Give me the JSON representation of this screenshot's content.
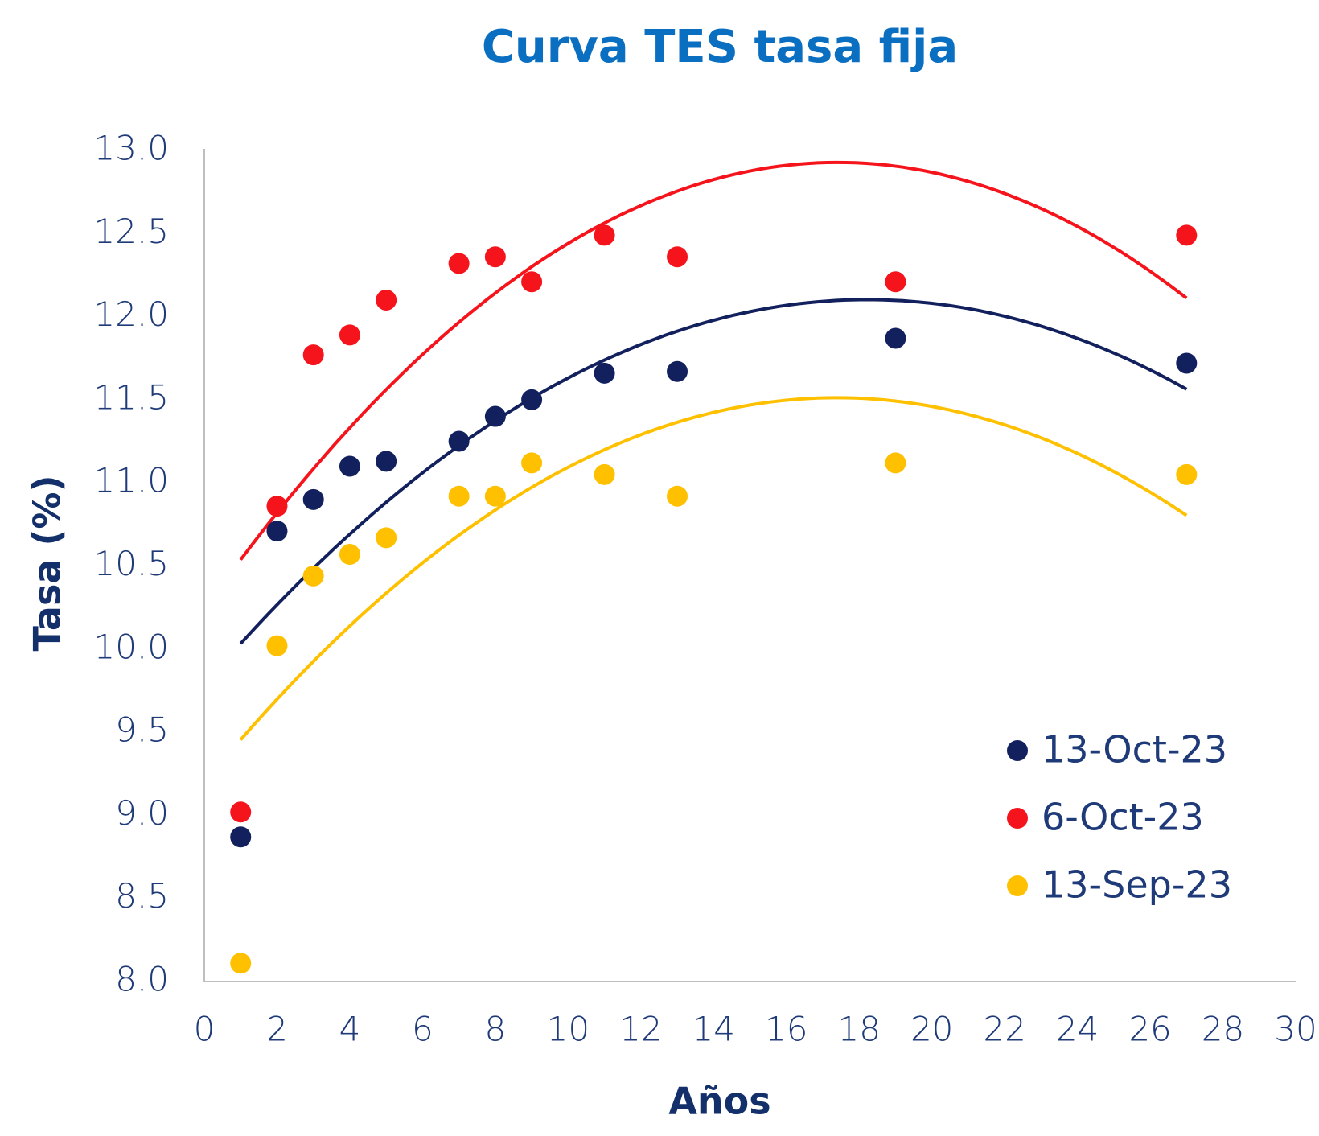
{
  "chart_data": {
    "type": "scatter",
    "title": "Curva TES tasa fija",
    "x_label": "Años",
    "y_label": "Tasa (%)",
    "x": [
      1,
      2,
      3,
      4,
      5,
      7,
      8,
      9,
      11,
      13,
      19,
      27
    ],
    "series": [
      {
        "name": "13-Oct-23",
        "color": "#12215e",
        "values": [
          8.87,
          10.71,
          10.9,
          11.1,
          11.13,
          11.25,
          11.4,
          11.5,
          11.66,
          11.67,
          11.87,
          11.72
        ]
      },
      {
        "name": "6-Oct-23",
        "color": "#f5141c",
        "values": [
          9.02,
          10.86,
          11.77,
          11.89,
          12.1,
          12.32,
          12.36,
          12.21,
          12.49,
          12.36,
          12.21,
          12.49
        ]
      },
      {
        "name": "13-Sep-23",
        "color": "#ffc000",
        "values": [
          8.11,
          10.02,
          10.44,
          10.57,
          10.67,
          10.92,
          10.92,
          11.12,
          11.05,
          10.92,
          11.12,
          11.05
        ]
      }
    ],
    "trendline": "polynomial",
    "xlim": [
      0,
      30
    ],
    "xticks": [
      0,
      2,
      4,
      6,
      8,
      10,
      12,
      14,
      16,
      18,
      20,
      22,
      24,
      26,
      28,
      30
    ],
    "ylim": [
      8,
      13
    ],
    "yticks": [
      {
        "value": 8,
        "label": "8.0"
      },
      8.5,
      {
        "value": 9,
        "label": "9.0"
      },
      9.5,
      {
        "value": 10,
        "label": "10.0"
      },
      10.5,
      {
        "value": 11,
        "label": "11.0"
      },
      11.5,
      {
        "value": 12,
        "label": "12.0"
      },
      12.5,
      {
        "value": 13,
        "label": "13.0"
      }
    ],
    "legend": "lower right",
    "grid": false
  }
}
